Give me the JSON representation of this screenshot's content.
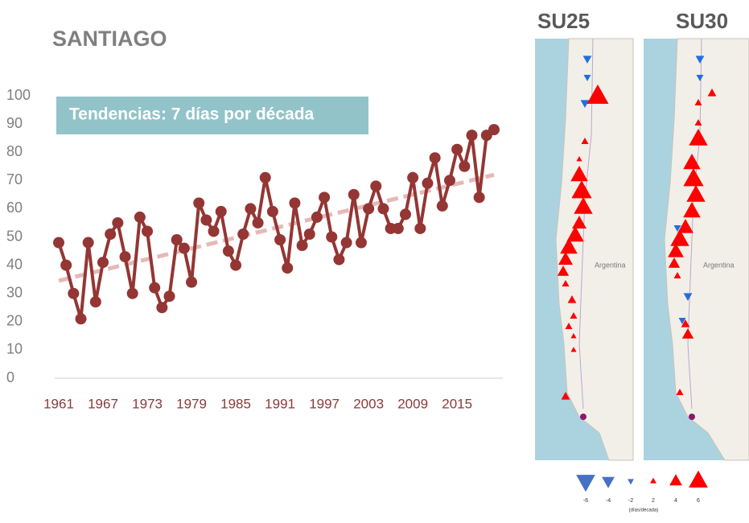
{
  "chart_data": {
    "type": "line",
    "title": "SANTIAGO",
    "annotation": "Tendencias: 7 días por década",
    "x": [
      1961,
      1962,
      1963,
      1964,
      1965,
      1966,
      1967,
      1968,
      1969,
      1970,
      1971,
      1972,
      1973,
      1974,
      1975,
      1976,
      1977,
      1978,
      1979,
      1980,
      1981,
      1982,
      1983,
      1984,
      1985,
      1986,
      1987,
      1988,
      1989,
      1990,
      1991,
      1992,
      1993,
      1994,
      1995,
      1996,
      1997,
      1998,
      1999,
      2000,
      2001,
      2002,
      2003,
      2004,
      2005,
      2006,
      2007,
      2008,
      2009,
      2010,
      2011,
      2012,
      2013,
      2014,
      2015,
      2016,
      2017,
      2018,
      2019,
      2020
    ],
    "series": [
      {
        "color": "#943634",
        "values": [
          48,
          40,
          30,
          21,
          48,
          27,
          41,
          51,
          55,
          43,
          30,
          57,
          52,
          32,
          25,
          29,
          49,
          46,
          34,
          62,
          56,
          52,
          59,
          45,
          40,
          51,
          60,
          55,
          71,
          59,
          49,
          39,
          62,
          47,
          51,
          57,
          64,
          50,
          42,
          48,
          65,
          48,
          60,
          68,
          60,
          53,
          53,
          58,
          71,
          53,
          69,
          78,
          61,
          70,
          81,
          75,
          86,
          64,
          86,
          88
        ]
      }
    ],
    "trend": {
      "color": "#e6b8b7",
      "x": [
        1961,
        2020
      ],
      "values": [
        34.5,
        72
      ]
    },
    "xlim": [
      1961,
      2020
    ],
    "xticks": [
      1961,
      1967,
      1973,
      1979,
      1985,
      1991,
      1997,
      2003,
      2009,
      2015
    ],
    "ylim": [
      0,
      100
    ],
    "yticks": [
      0,
      10,
      20,
      30,
      40,
      50,
      60,
      70,
      80,
      90,
      100
    ]
  },
  "maps": [
    {
      "title": "SU25",
      "label": "Argentina"
    },
    {
      "title": "SU30",
      "label": "Argentina"
    }
  ],
  "map_legend": {
    "values": [
      -6,
      -4,
      -2,
      2,
      4,
      6
    ],
    "colors": {
      "negative": "#4472c4",
      "positive": "#ff0000"
    },
    "unit": "(días/década)"
  }
}
